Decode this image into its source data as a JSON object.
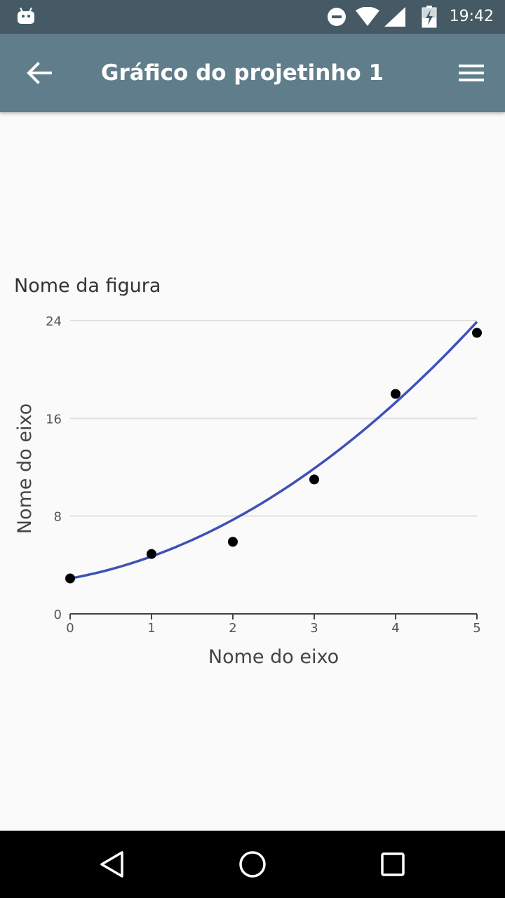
{
  "status_bar": {
    "time": "19:42",
    "icons": [
      "android-icon",
      "do-not-disturb-icon",
      "wifi-icon",
      "signal-icon",
      "battery-charging-icon"
    ]
  },
  "app_bar": {
    "title": "Gráfico do projetinho 1",
    "back_icon": "arrow-left-icon",
    "menu_icon": "hamburger-menu-icon"
  },
  "chart_data": {
    "type": "scatter",
    "title": "Nome da figura",
    "xlabel": "Nome do eixo",
    "ylabel": "Nome do eixo",
    "xlim": [
      0,
      5
    ],
    "ylim": [
      0,
      24
    ],
    "x_ticks": [
      0,
      1,
      2,
      3,
      4,
      5
    ],
    "y_ticks": [
      0,
      8,
      16,
      24
    ],
    "grid": "horizontal",
    "points": [
      {
        "x": 0,
        "y": 2.9
      },
      {
        "x": 1,
        "y": 4.9
      },
      {
        "x": 2,
        "y": 5.9
      },
      {
        "x": 3,
        "y": 11.0
      },
      {
        "x": 4,
        "y": 18.0
      },
      {
        "x": 5,
        "y": 23.0
      }
    ],
    "trend_line": {
      "type": "quadratic",
      "coefficients": [
        2.9,
        1.2,
        0.6
      ],
      "color": "#3f51b5"
    },
    "point_color": "#000000"
  },
  "nav_bar": {
    "icons": [
      "back-triangle-icon",
      "home-circle-icon",
      "recents-square-icon"
    ]
  }
}
